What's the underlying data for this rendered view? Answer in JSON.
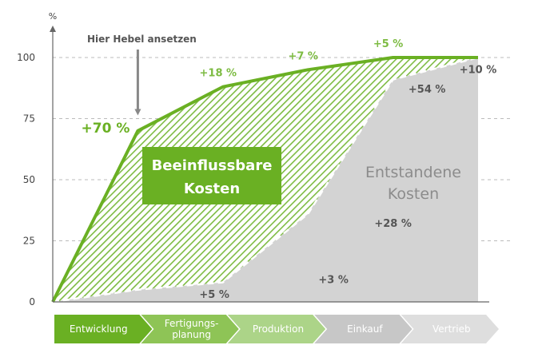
{
  "chart_data": {
    "type": "area",
    "y_unit": "%",
    "y_ticks": [
      "0",
      "25",
      "50",
      "75",
      "100"
    ],
    "ylim": [
      0,
      100
    ],
    "grid": true,
    "x_phase_count": 5,
    "phases": [
      {
        "label": "Entwicklung",
        "color": "#6ab023"
      },
      {
        "label": "Fertigungs-\nplanung",
        "color": "#8ec456"
      },
      {
        "label": "Produktion",
        "color": "#acd488"
      },
      {
        "label": "Einkauf",
        "color": "#c7c7c7"
      },
      {
        "label": "Vertrieb",
        "color": "#dedede"
      }
    ],
    "series": [
      {
        "name": "Beeinflussbare Kosten",
        "color": "#6ab023",
        "points": [
          [
            0,
            0
          ],
          [
            1,
            70
          ],
          [
            2,
            88
          ],
          [
            3,
            95
          ],
          [
            4,
            100
          ],
          [
            5,
            100
          ]
        ]
      },
      {
        "name": "Entstandene Kosten",
        "color": "#d3d3d3",
        "points": [
          [
            0,
            0
          ],
          [
            1,
            5
          ],
          [
            2,
            8
          ],
          [
            3,
            36
          ],
          [
            4,
            91
          ],
          [
            5,
            100
          ]
        ]
      }
    ],
    "upper_labels": [
      {
        "text": "+70 %",
        "x": 1,
        "y": 70,
        "big": true
      },
      {
        "text": "+18 %",
        "x": 2,
        "y": 88
      },
      {
        "text": "+7 %",
        "x": 3,
        "y": 95
      },
      {
        "text": "+5 %",
        "x": 4,
        "y": 100
      }
    ],
    "lower_labels": [
      {
        "text": "+5 %",
        "x": 1.9,
        "y": 1
      },
      {
        "text": "+3 %",
        "x": 3.3,
        "y": 7
      },
      {
        "text": "+28 %",
        "x": 4.0,
        "y": 30
      },
      {
        "text": "+54 %",
        "x": 4.4,
        "y": 85
      },
      {
        "text": "+10 %",
        "x": 5.0,
        "y": 93
      }
    ],
    "annotation": {
      "text": "Hier Hebel ansetzen",
      "x": 1,
      "y": 75
    },
    "region_labels": {
      "beeinflussbar": [
        "Beeinflussbare",
        "Kosten"
      ],
      "entstanden": [
        "Entstandene",
        "Kosten"
      ]
    }
  }
}
